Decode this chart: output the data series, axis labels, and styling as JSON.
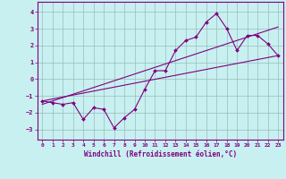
{
  "xlabel": "Windchill (Refroidissement éolien,°C)",
  "bg_color": "#c8f0f0",
  "line_color": "#800080",
  "grid_color": "#99bbbb",
  "xlim": [
    -0.5,
    23.5
  ],
  "ylim": [
    -3.6,
    4.6
  ],
  "yticks": [
    -3,
    -2,
    -1,
    0,
    1,
    2,
    3,
    4
  ],
  "xticks": [
    0,
    1,
    2,
    3,
    4,
    5,
    6,
    7,
    8,
    9,
    10,
    11,
    12,
    13,
    14,
    15,
    16,
    17,
    18,
    19,
    20,
    21,
    22,
    23
  ],
  "data_x": [
    0,
    1,
    2,
    3,
    4,
    5,
    6,
    7,
    8,
    9,
    10,
    11,
    12,
    13,
    14,
    15,
    16,
    17,
    18,
    19,
    20,
    21,
    22,
    23
  ],
  "data_y": [
    -1.3,
    -1.4,
    -1.5,
    -1.4,
    -2.4,
    -1.7,
    -1.8,
    -2.9,
    -2.3,
    -1.8,
    -0.6,
    0.5,
    0.5,
    1.7,
    2.3,
    2.5,
    3.4,
    3.9,
    3.0,
    1.7,
    2.6,
    2.6,
    2.1,
    1.4
  ],
  "line1_x": [
    0,
    23
  ],
  "line1_y": [
    -1.3,
    1.4
  ],
  "line2_x": [
    0,
    23
  ],
  "line2_y": [
    -1.5,
    3.1
  ]
}
